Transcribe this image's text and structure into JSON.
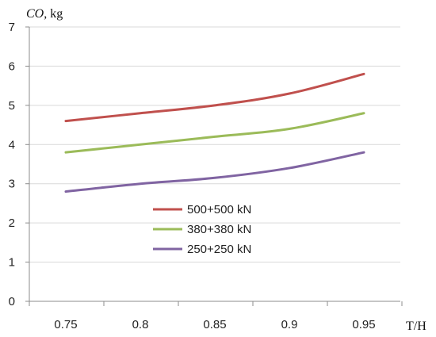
{
  "chart_data": {
    "type": "line",
    "ylabel_var": "CO",
    "ylabel_unit": ", kg",
    "xlabel": "T/H",
    "x": [
      0.75,
      0.8,
      0.85,
      0.9,
      0.95
    ],
    "xticks": [
      "0.75",
      "0.8",
      "0.85",
      "0.9",
      "0.95"
    ],
    "yticks": [
      "0",
      "1",
      "2",
      "3",
      "4",
      "5",
      "6",
      "7"
    ],
    "ylim": [
      0,
      7
    ],
    "grid": "horizontal",
    "legend": "center",
    "series": [
      {
        "name": "500+500 kN",
        "color": "#c0504d",
        "values": [
          4.6,
          4.8,
          5.0,
          5.3,
          5.8
        ]
      },
      {
        "name": "380+380 kN",
        "color": "#9bbb59",
        "values": [
          3.8,
          4.0,
          4.2,
          4.4,
          4.8
        ]
      },
      {
        "name": "250+250 kN",
        "color": "#8064a2",
        "values": [
          2.8,
          3.0,
          3.15,
          3.4,
          3.8
        ]
      }
    ]
  }
}
